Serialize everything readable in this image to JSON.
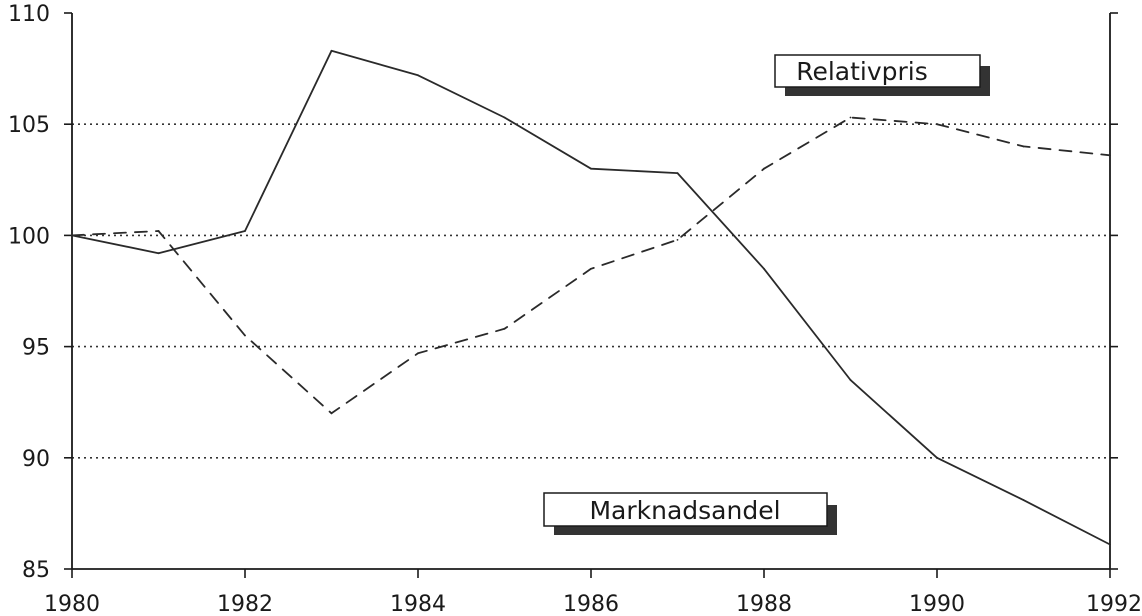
{
  "chart_data": {
    "type": "line",
    "title": "",
    "xlabel": "",
    "ylabel": "",
    "xlim": [
      1980,
      1992
    ],
    "ylim": [
      85,
      110
    ],
    "grid": "horizontal dotted lines at y ticks",
    "x_ticks": [
      1980,
      1982,
      1984,
      1986,
      1988,
      1990,
      1992
    ],
    "y_ticks": [
      85,
      90,
      95,
      100,
      105,
      110
    ],
    "x_tick_labels": [
      "1980",
      "1982",
      "1984",
      "1986",
      "1988",
      "1990",
      "1992"
    ],
    "y_tick_labels": [
      "85",
      "90",
      "95",
      "100",
      "105",
      "110"
    ],
    "x": [
      1980,
      1981,
      1982,
      1983,
      1984,
      1985,
      1986,
      1987,
      1988,
      1989,
      1990,
      1991,
      1992
    ],
    "series": [
      {
        "name": "Relativpris",
        "line_style": "dashed",
        "values": [
          100.0,
          100.2,
          95.5,
          92.0,
          94.7,
          95.8,
          98.5,
          99.8,
          103.0,
          105.3,
          105.0,
          104.0,
          103.6
        ]
      },
      {
        "name": "Marknadsandel",
        "line_style": "solid",
        "values": [
          100.0,
          99.2,
          100.2,
          108.3,
          107.2,
          105.3,
          103.0,
          102.8,
          98.5,
          93.5,
          90.0,
          88.1,
          86.1
        ]
      }
    ],
    "legend_labels": {
      "relativpris": "Relativpris",
      "marknadsandel": "Marknadsandel"
    },
    "legend_placement": "inline boxed labels: Relativpris upper-right, Marknadsandel lower-middle",
    "colors": {
      "line": "#2a2a2a",
      "grid": "#333333",
      "axis": "#1a1a1a",
      "label_shadow": "#333333"
    }
  }
}
